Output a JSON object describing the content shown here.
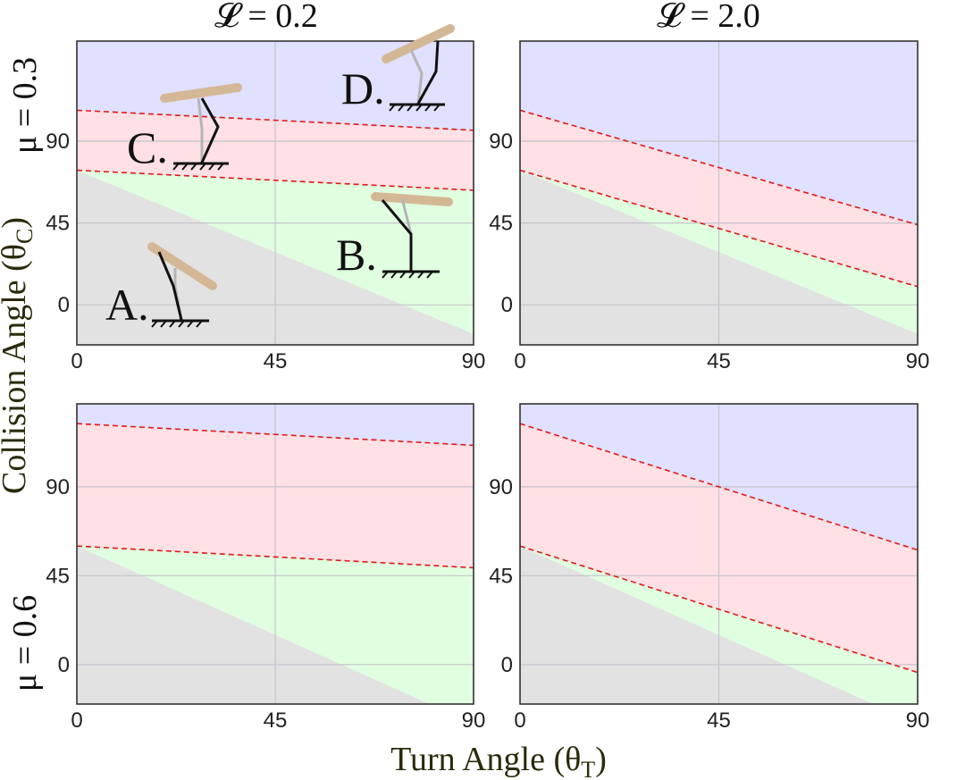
{
  "figure": {
    "col_titles": [
      "𝓛 = 0.2",
      "𝓛 = 2.0"
    ],
    "row_titles": [
      "μ = 0.3",
      "μ = 0.6"
    ],
    "xlabel_main": "Turn Angle (θ",
    "xlabel_sub": "T",
    "xlabel_end": ")",
    "ylabel_main": "Collision Angle (θ",
    "ylabel_sub": "C",
    "ylabel_end": ")"
  },
  "colors": {
    "blue_region": "#e0e0ff",
    "red_region": "#ffe0e4",
    "green_region": "#e0ffe0",
    "gray_region": "#e2e2e2",
    "boundary": "#e01818",
    "grid": "#c4c4cc",
    "frame": "#333333",
    "pad": "#d4b896"
  },
  "annotations": {
    "letters": [
      "A.",
      "B.",
      "C.",
      "D."
    ]
  },
  "chart_data": [
    {
      "type": "area",
      "panel": "top-left",
      "x": [
        0,
        90
      ],
      "xlim": [
        0,
        90
      ],
      "ylim": [
        -22,
        145
      ],
      "xticks": [
        0,
        45,
        90
      ],
      "yticks": [
        0,
        45,
        90
      ],
      "xtick_labels": [
        "0",
        "45",
        "90"
      ],
      "ytick_labels": [
        "0",
        "45",
        "90"
      ],
      "grid": true,
      "lower_boundary": [
        74,
        63
      ],
      "upper_boundary": [
        107,
        96
      ],
      "gray_boundary": [
        74,
        -16
      ]
    },
    {
      "type": "area",
      "panel": "top-right",
      "x": [
        0,
        90
      ],
      "xlim": [
        0,
        90
      ],
      "ylim": [
        -22,
        145
      ],
      "xticks": [
        0,
        45,
        90
      ],
      "yticks": [
        0,
        45,
        90
      ],
      "xtick_labels": [
        "0",
        "45",
        "90"
      ],
      "ytick_labels": [
        "0",
        "45",
        "90"
      ],
      "grid": true,
      "lower_boundary": [
        74,
        10
      ],
      "upper_boundary": [
        107,
        44
      ],
      "gray_boundary": [
        74,
        -16
      ]
    },
    {
      "type": "area",
      "panel": "bottom-left",
      "x": [
        0,
        90
      ],
      "xlim": [
        0,
        90
      ],
      "ylim": [
        -20,
        132
      ],
      "xticks": [
        0,
        45,
        90
      ],
      "yticks": [
        0,
        45,
        90
      ],
      "xtick_labels": [
        "0",
        "45",
        "90"
      ],
      "ytick_labels": [
        "0",
        "45",
        "90"
      ],
      "grid": true,
      "lower_boundary": [
        60,
        49
      ],
      "upper_boundary": [
        122,
        111
      ],
      "gray_boundary": [
        60,
        -30
      ]
    },
    {
      "type": "area",
      "panel": "bottom-right",
      "x": [
        0,
        90
      ],
      "xlim": [
        0,
        90
      ],
      "ylim": [
        -20,
        132
      ],
      "xticks": [
        0,
        45,
        90
      ],
      "yticks": [
        0,
        45,
        90
      ],
      "xtick_labels": [
        "0",
        "45",
        "90"
      ],
      "ytick_labels": [
        "0",
        "45",
        "90"
      ],
      "grid": true,
      "lower_boundary": [
        60,
        -4
      ],
      "upper_boundary": [
        122,
        58
      ],
      "gray_boundary": [
        60,
        -30
      ]
    }
  ]
}
